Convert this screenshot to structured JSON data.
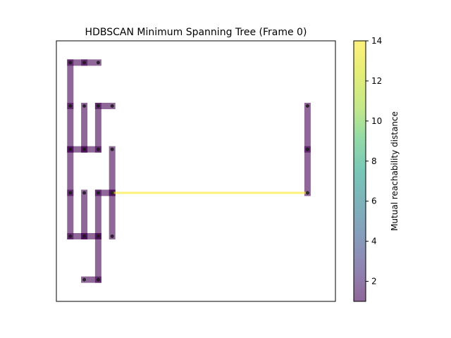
{
  "chart_data": {
    "type": "network",
    "title": "HDBSCAN Minimum Spanning Tree (Frame 0)",
    "colorbar": {
      "label": "Mutual reachability distance",
      "range": [
        1,
        14
      ],
      "tick_values": [
        2,
        4,
        6,
        8,
        10,
        12,
        14
      ],
      "colormap": "viridis",
      "alpha": 0.6
    },
    "xlim": [
      -1,
      19
    ],
    "ylim": [
      -0.5,
      17.5
    ],
    "x_ticks_shown": false,
    "y_ticks_shown": false,
    "nodes": [
      [
        0,
        16
      ],
      [
        1,
        16
      ],
      [
        2,
        16
      ],
      [
        0,
        13
      ],
      [
        1,
        13
      ],
      [
        2,
        13
      ],
      [
        3,
        13
      ],
      [
        0,
        10
      ],
      [
        1,
        10
      ],
      [
        2,
        10
      ],
      [
        3,
        10
      ],
      [
        0,
        7
      ],
      [
        1,
        7
      ],
      [
        2,
        7
      ],
      [
        3,
        7
      ],
      [
        0,
        4
      ],
      [
        1,
        4
      ],
      [
        2,
        4
      ],
      [
        3,
        4
      ],
      [
        1,
        1
      ],
      [
        2,
        1
      ],
      [
        17,
        13
      ],
      [
        17,
        10
      ],
      [
        17,
        7
      ]
    ],
    "edges": [
      {
        "from": [
          0,
          16
        ],
        "to": [
          1,
          16
        ],
        "weight": 1
      },
      {
        "from": [
          1,
          16
        ],
        "to": [
          2,
          16
        ],
        "weight": 1
      },
      {
        "from": [
          0,
          16
        ],
        "to": [
          0,
          13
        ],
        "weight": 1
      },
      {
        "from": [
          0,
          13
        ],
        "to": [
          0,
          10
        ],
        "weight": 1
      },
      {
        "from": [
          0,
          10
        ],
        "to": [
          1,
          10
        ],
        "weight": 1
      },
      {
        "from": [
          1,
          10
        ],
        "to": [
          2,
          10
        ],
        "weight": 1
      },
      {
        "from": [
          1,
          10
        ],
        "to": [
          1,
          13
        ],
        "weight": 1
      },
      {
        "from": [
          2,
          10
        ],
        "to": [
          2,
          13
        ],
        "weight": 1
      },
      {
        "from": [
          2,
          13
        ],
        "to": [
          3,
          13
        ],
        "weight": 1
      },
      {
        "from": [
          0,
          10
        ],
        "to": [
          0,
          7
        ],
        "weight": 1
      },
      {
        "from": [
          0,
          7
        ],
        "to": [
          0,
          4
        ],
        "weight": 1
      },
      {
        "from": [
          0,
          4
        ],
        "to": [
          1,
          4
        ],
        "weight": 1
      },
      {
        "from": [
          1,
          4
        ],
        "to": [
          2,
          4
        ],
        "weight": 1
      },
      {
        "from": [
          1,
          4
        ],
        "to": [
          1,
          7
        ],
        "weight": 1
      },
      {
        "from": [
          2,
          7
        ],
        "to": [
          3,
          7
        ],
        "weight": 1
      },
      {
        "from": [
          2,
          7
        ],
        "to": [
          2,
          4
        ],
        "weight": 1
      },
      {
        "from": [
          2,
          4
        ],
        "to": [
          2,
          1
        ],
        "weight": 1
      },
      {
        "from": [
          2,
          1
        ],
        "to": [
          1,
          1
        ],
        "weight": 1
      },
      {
        "from": [
          3,
          10
        ],
        "to": [
          3,
          7
        ],
        "weight": 1
      },
      {
        "from": [
          3,
          7
        ],
        "to": [
          3,
          4
        ],
        "weight": 1
      },
      {
        "from": [
          17,
          13
        ],
        "to": [
          17,
          10
        ],
        "weight": 1
      },
      {
        "from": [
          17,
          10
        ],
        "to": [
          17,
          7
        ],
        "weight": 1
      },
      {
        "from": [
          3,
          7
        ],
        "to": [
          17,
          7
        ],
        "weight": 14
      }
    ]
  }
}
